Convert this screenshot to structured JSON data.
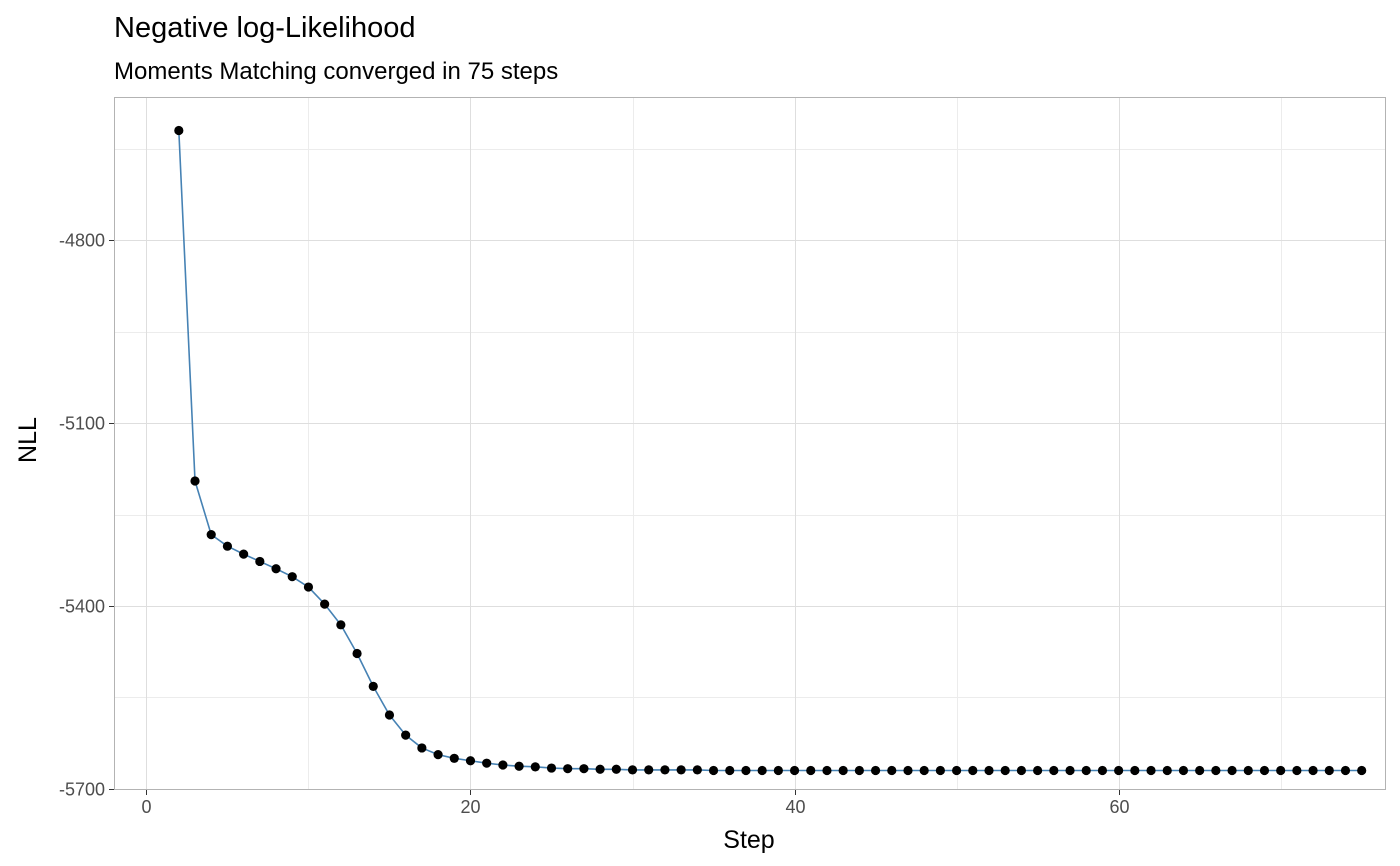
{
  "chart_data": {
    "type": "line",
    "title": "Negative log-Likelihood",
    "subtitle": "Moments Matching converged in 75 steps",
    "xlabel": "Step",
    "ylabel": "NLL",
    "xlim": [
      -2,
      76.5
    ],
    "ylim": [
      -5702,
      -4565
    ],
    "x_ticks": [
      0,
      20,
      40,
      60
    ],
    "x_tick_labels": [
      "0",
      "20",
      "40",
      "60"
    ],
    "y_ticks": [
      -4800,
      -5100,
      -5400,
      -5700
    ],
    "y_tick_labels": [
      "-4800",
      "-5100",
      "-5400",
      "-5700"
    ],
    "grid": true,
    "legend": "none",
    "line_color": "#4682B4",
    "point_color": "#000000",
    "series": [
      {
        "x": [
          2,
          3,
          4,
          5,
          6,
          7,
          8,
          9,
          10,
          11,
          12,
          13,
          14,
          15,
          16,
          17,
          18,
          19,
          20,
          21,
          22,
          23,
          24,
          25,
          26,
          27,
          28,
          29,
          30,
          31,
          32,
          33,
          34,
          35,
          36,
          37,
          38,
          39,
          40,
          41,
          42,
          43,
          44,
          45,
          46,
          47,
          48,
          49,
          50,
          51,
          52,
          53,
          54,
          55,
          56,
          57,
          58,
          59,
          60,
          61,
          62,
          63,
          64,
          65,
          66,
          67,
          68,
          69,
          70,
          71,
          72,
          73,
          74,
          75
        ],
        "values": [
          -4620,
          -5195,
          -5283,
          -5302,
          -5315,
          -5327,
          -5339,
          -5352,
          -5369,
          -5397,
          -5431,
          -5478,
          -5532,
          -5579,
          -5612,
          -5633,
          -5644,
          -5650,
          -5654,
          -5658,
          -5661,
          -5663,
          -5664,
          -5666,
          -5667,
          -5667,
          -5668,
          -5668,
          -5669,
          -5669,
          -5669,
          -5669,
          -5669,
          -5670,
          -5670,
          -5670,
          -5670,
          -5670,
          -5670,
          -5670,
          -5670,
          -5670,
          -5670,
          -5670,
          -5670,
          -5670,
          -5670,
          -5670,
          -5670,
          -5670,
          -5670,
          -5670,
          -5670,
          -5670,
          -5670,
          -5670,
          -5670,
          -5670,
          -5670,
          -5670,
          -5670,
          -5670,
          -5670,
          -5670,
          -5670,
          -5670,
          -5670,
          -5670,
          -5670,
          -5670,
          -5670,
          -5670,
          -5670,
          -5670
        ]
      }
    ]
  }
}
